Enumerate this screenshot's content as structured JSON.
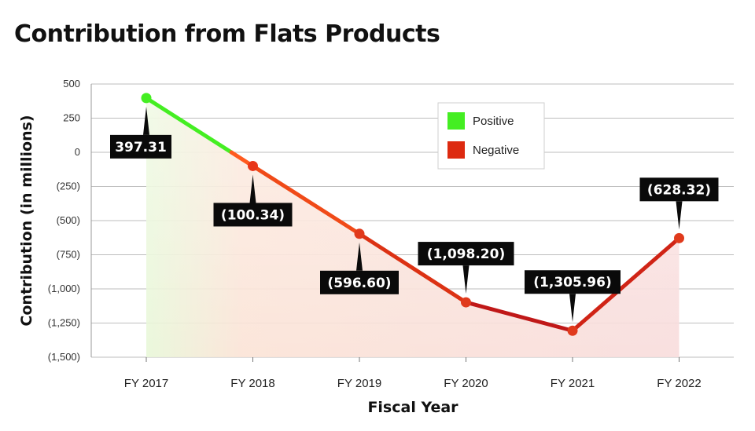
{
  "title": "Contribution from Flats Products",
  "chart_data": {
    "type": "line",
    "title": "Contribution from Flats Products",
    "xlabel": "Fiscal Year",
    "ylabel": "Contribution (in millions)",
    "ylim": [
      -1500,
      500
    ],
    "yticks": [
      500,
      250,
      0,
      -250,
      -500,
      -750,
      -1000,
      -1250,
      -1500
    ],
    "ytick_labels": [
      "500",
      "250",
      "0",
      "(250)",
      "(500)",
      "(750)",
      "(1,000)",
      "(1,250)",
      "(1,500)"
    ],
    "categories": [
      "FY 2017",
      "FY 2018",
      "FY 2019",
      "FY 2020",
      "FY 2021",
      "FY 2022"
    ],
    "values": [
      397.31,
      -100.34,
      -596.6,
      -1098.2,
      -1305.96,
      -628.32
    ],
    "data_labels": [
      "397.31",
      "(100.34)",
      "(596.60)",
      "(1,098.20)",
      "(1,305.96)",
      "(628.32)"
    ],
    "label_positions": [
      "below",
      "below",
      "below",
      "above",
      "above",
      "above"
    ],
    "grid": true,
    "legend": {
      "placement": "top-right",
      "entries": [
        {
          "label": "Positive",
          "color": "#44ee22"
        },
        {
          "label": "Negative",
          "color": "#dd2a10"
        }
      ]
    },
    "colors": {
      "positive": "#44ee22",
      "negative_light": "#ff5a1f",
      "negative_dark": "#c01818",
      "label_bg": "#0a0a0a"
    }
  }
}
